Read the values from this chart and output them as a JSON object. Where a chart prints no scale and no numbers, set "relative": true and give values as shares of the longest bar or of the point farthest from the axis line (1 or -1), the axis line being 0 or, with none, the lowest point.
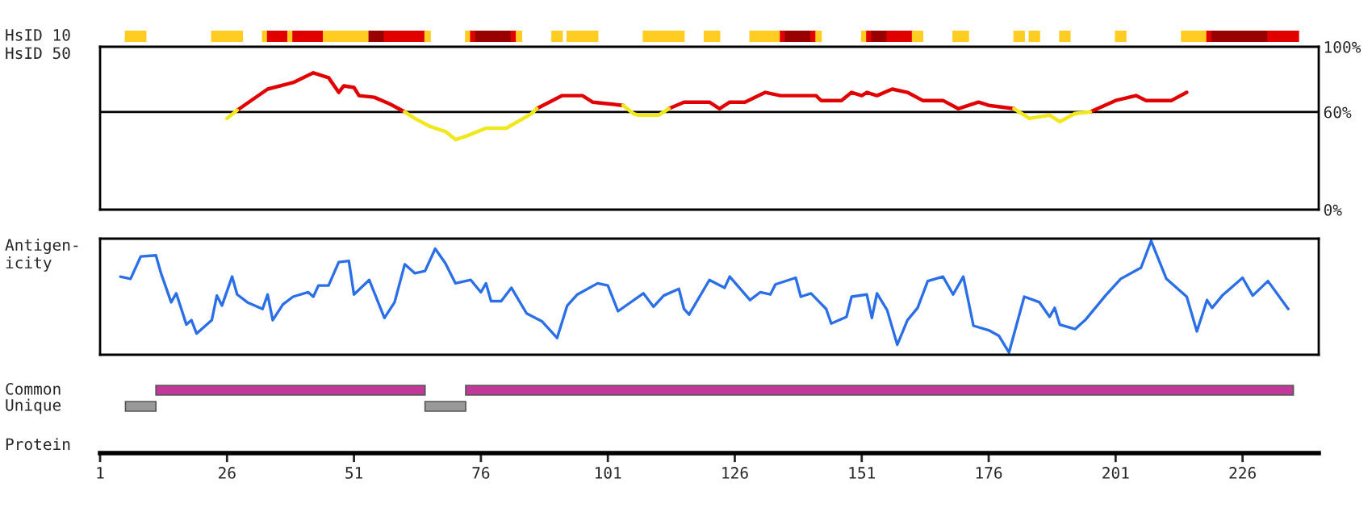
{
  "chart_data": [
    {
      "type": "bar",
      "orientation": "horizontal",
      "tick_labels": "y",
      "xlim": [
        1,
        241
      ],
      "categories": [
        "HsID 10"
      ],
      "series": [
        {
          "color": "#ffcc22",
          "base": [
            6
          ],
          "values": [
            4
          ]
        },
        {
          "color": "#ffcc22",
          "base": [
            23
          ],
          "values": [
            3
          ]
        },
        {
          "color": "#ffcc22",
          "base": [
            26
          ],
          "values": [
            3
          ]
        },
        {
          "color": "#ffcc22",
          "base": [
            33
          ],
          "values": [
            1
          ]
        },
        {
          "color": "#e00000",
          "base": [
            34
          ],
          "values": [
            4
          ]
        },
        {
          "color": "#ffcc22",
          "base": [
            38
          ],
          "values": [
            1
          ]
        },
        {
          "color": "#e00000",
          "base": [
            39
          ],
          "values": [
            6
          ]
        },
        {
          "color": "#ffcc22",
          "base": [
            45
          ],
          "values": [
            1
          ]
        },
        {
          "color": "#ffcc22",
          "base": [
            46
          ],
          "values": [
            8
          ]
        },
        {
          "color": "#990000",
          "base": [
            54
          ],
          "values": [
            3
          ]
        },
        {
          "color": "#e00000",
          "base": [
            57
          ],
          "values": [
            8
          ]
        },
        {
          "color": "#ffcc22",
          "base": [
            65
          ],
          "values": [
            1
          ]
        },
        {
          "color": "#ffcc22",
          "base": [
            73
          ],
          "values": [
            1
          ]
        },
        {
          "color": "#e00000",
          "base": [
            74
          ],
          "values": [
            1
          ]
        },
        {
          "color": "#990000",
          "base": [
            75
          ],
          "values": [
            7
          ]
        },
        {
          "color": "#e00000",
          "base": [
            82
          ],
          "values": [
            1
          ]
        },
        {
          "color": "#ffcc22",
          "base": [
            83
          ],
          "values": [
            1
          ]
        },
        {
          "color": "#ffcc22",
          "base": [
            90
          ],
          "values": [
            2
          ]
        },
        {
          "color": "#ffcc22",
          "base": [
            93
          ],
          "values": [
            2
          ]
        },
        {
          "color": "#ffcc22",
          "base": [
            95
          ],
          "values": [
            4
          ]
        },
        {
          "color": "#ffcc22",
          "base": [
            108
          ],
          "values": [
            8
          ]
        },
        {
          "color": "#ffcc22",
          "base": [
            120
          ],
          "values": [
            3
          ]
        },
        {
          "color": "#ffcc22",
          "base": [
            129
          ],
          "values": [
            2
          ]
        },
        {
          "color": "#ffcc22",
          "base": [
            131
          ],
          "values": [
            4
          ]
        },
        {
          "color": "#e00000",
          "base": [
            135
          ],
          "values": [
            1
          ]
        },
        {
          "color": "#990000",
          "base": [
            136
          ],
          "values": [
            5
          ]
        },
        {
          "color": "#e00000",
          "base": [
            141
          ],
          "values": [
            1
          ]
        },
        {
          "color": "#ffcc22",
          "base": [
            142
          ],
          "values": [
            1
          ]
        },
        {
          "color": "#ffcc22",
          "base": [
            151
          ],
          "values": [
            1
          ]
        },
        {
          "color": "#e00000",
          "base": [
            152
          ],
          "values": [
            1
          ]
        },
        {
          "color": "#990000",
          "base": [
            153
          ],
          "values": [
            3
          ]
        },
        {
          "color": "#e00000",
          "base": [
            156
          ],
          "values": [
            5
          ]
        },
        {
          "color": "#ffcc22",
          "base": [
            161
          ],
          "values": [
            2
          ]
        },
        {
          "color": "#ffcc22",
          "base": [
            169
          ],
          "values": [
            3
          ]
        },
        {
          "color": "#ffcc22",
          "base": [
            181
          ],
          "values": [
            2
          ]
        },
        {
          "color": "#ffcc22",
          "base": [
            184
          ],
          "values": [
            2
          ]
        },
        {
          "color": "#ffcc22",
          "base": [
            190
          ],
          "values": [
            2
          ]
        },
        {
          "color": "#ffcc22",
          "base": [
            201
          ],
          "values": [
            2
          ]
        },
        {
          "color": "#ffcc22",
          "base": [
            214
          ],
          "values": [
            5
          ]
        },
        {
          "color": "#e00000",
          "base": [
            219
          ],
          "values": [
            1
          ]
        },
        {
          "color": "#990000",
          "base": [
            220
          ],
          "values": [
            11
          ]
        },
        {
          "color": "#e00000",
          "base": [
            231
          ],
          "values": [
            6
          ]
        }
      ]
    },
    {
      "type": "line",
      "ylabel": "HsID 50",
      "tick_labels": "y",
      "xlim": [
        1,
        241
      ],
      "ylim": [
        0,
        100
      ],
      "yticks": [
        {
          "value": 0,
          "label": "0%"
        },
        {
          "value": 60,
          "label": "60%"
        },
        {
          "value": 100,
          "label": "100%"
        }
      ],
      "ref_lines": [
        {
          "axis": "y",
          "value": 60,
          "color": "#000000"
        }
      ],
      "x": [
        26,
        28,
        34,
        39,
        43,
        46,
        48,
        49,
        51,
        52,
        55,
        58,
        61,
        63,
        66,
        69,
        71,
        73,
        77,
        81,
        86,
        87,
        92,
        96,
        98,
        104,
        106,
        107,
        111,
        113,
        116,
        121,
        123,
        125,
        128,
        132,
        135,
        142,
        143,
        147,
        149,
        151,
        152,
        154,
        157,
        160,
        163,
        167,
        170,
        174,
        176,
        181,
        184,
        188,
        190,
        193,
        196,
        201,
        205,
        207,
        212,
        215
      ],
      "series": [
        {
          "color": "#e00000",
          "values": [
            null,
            61,
            74,
            78,
            84,
            81,
            72,
            76,
            75,
            70,
            69,
            65,
            60,
            null,
            null,
            null,
            null,
            null,
            null,
            null,
            null,
            62,
            70,
            70,
            66,
            64,
            null,
            null,
            null,
            62,
            66,
            66,
            62,
            66,
            66,
            72,
            70,
            70,
            67,
            67,
            72,
            70,
            72,
            70,
            74,
            72,
            67,
            67,
            62,
            66,
            64,
            62,
            null,
            null,
            null,
            null,
            60,
            67,
            70,
            67,
            67,
            72
          ]
        },
        {
          "color": "#f0e81a",
          "values": [
            56,
            61,
            null,
            null,
            null,
            null,
            null,
            null,
            null,
            null,
            null,
            null,
            60,
            56,
            51,
            48,
            43,
            45,
            50,
            50,
            59,
            62,
            null,
            null,
            null,
            64,
            59,
            58,
            58,
            62,
            null,
            null,
            null,
            null,
            null,
            null,
            null,
            null,
            null,
            null,
            null,
            null,
            null,
            null,
            null,
            null,
            null,
            null,
            null,
            null,
            null,
            62,
            56,
            58,
            54,
            59,
            60,
            null,
            null,
            null,
            null,
            null
          ]
        }
      ]
    },
    {
      "type": "line",
      "ylabel": "Antigen-\nicity",
      "relative": true,
      "tick_labels": false,
      "xlim": [
        1,
        241
      ],
      "x": [
        5,
        7,
        9,
        12,
        13,
        15,
        16,
        18,
        19,
        20,
        23,
        24,
        25,
        27,
        28,
        30,
        33,
        34,
        35,
        37,
        39,
        42,
        43,
        44,
        46,
        48,
        50,
        51,
        54,
        57,
        59,
        61,
        63,
        65,
        67,
        69,
        71,
        74,
        76,
        77,
        78,
        80,
        82,
        85,
        88,
        91,
        93,
        95,
        99,
        101,
        103,
        108,
        110,
        112,
        115,
        116,
        117,
        121,
        124,
        125,
        129,
        131,
        133,
        134,
        138,
        139,
        141,
        144,
        145,
        148,
        149,
        152,
        153,
        154,
        156,
        158,
        160,
        162,
        164,
        167,
        169,
        171,
        173,
        176,
        178,
        180,
        183,
        186,
        188,
        189,
        190,
        193,
        195,
        199,
        202,
        206,
        208,
        211,
        215,
        217,
        219,
        220,
        222,
        226,
        228,
        231,
        235
      ],
      "series": [
        {
          "color": "#2a6fe8",
          "values": [
            0.68,
            0.66,
            0.86,
            0.87,
            0.71,
            0.45,
            0.53,
            0.25,
            0.29,
            0.17,
            0.29,
            0.51,
            0.42,
            0.68,
            0.52,
            0.45,
            0.39,
            0.52,
            0.29,
            0.43,
            0.5,
            0.54,
            0.5,
            0.6,
            0.6,
            0.81,
            0.82,
            0.52,
            0.65,
            0.31,
            0.45,
            0.79,
            0.71,
            0.73,
            0.93,
            0.8,
            0.62,
            0.65,
            0.54,
            0.62,
            0.46,
            0.46,
            0.58,
            0.35,
            0.28,
            0.13,
            0.42,
            0.52,
            0.62,
            0.6,
            0.37,
            0.53,
            0.41,
            0.51,
            0.57,
            0.39,
            0.34,
            0.65,
            0.58,
            0.68,
            0.47,
            0.54,
            0.52,
            0.61,
            0.67,
            0.5,
            0.53,
            0.39,
            0.26,
            0.32,
            0.5,
            0.52,
            0.31,
            0.53,
            0.38,
            0.07,
            0.29,
            0.4,
            0.64,
            0.68,
            0.52,
            0.68,
            0.24,
            0.2,
            0.15,
            0.0,
            0.5,
            0.45,
            0.32,
            0.4,
            0.25,
            0.21,
            0.29,
            0.51,
            0.66,
            0.76,
            1.0,
            0.66,
            0.5,
            0.19,
            0.47,
            0.4,
            0.51,
            0.67,
            0.51,
            0.64,
            0.39
          ]
        }
      ]
    },
    {
      "type": "bar",
      "orientation": "horizontal",
      "xlabel": "Protein",
      "xlim": [
        1,
        241
      ],
      "xticks": [
        1,
        26,
        51,
        76,
        101,
        126,
        151,
        176,
        201,
        226
      ],
      "categories": [
        "Common",
        "Unique"
      ],
      "series": [
        {
          "color": "#c0399a",
          "base": [
            12,
            null
          ],
          "values": [
            53,
            null
          ]
        },
        {
          "color": "#c0399a",
          "base": [
            73,
            null
          ],
          "values": [
            163,
            null
          ]
        },
        {
          "color": "#999999",
          "base": [
            null,
            6
          ],
          "values": [
            null,
            6
          ]
        },
        {
          "color": "#999999",
          "base": [
            null,
            65
          ],
          "values": [
            null,
            8
          ]
        }
      ]
    }
  ]
}
